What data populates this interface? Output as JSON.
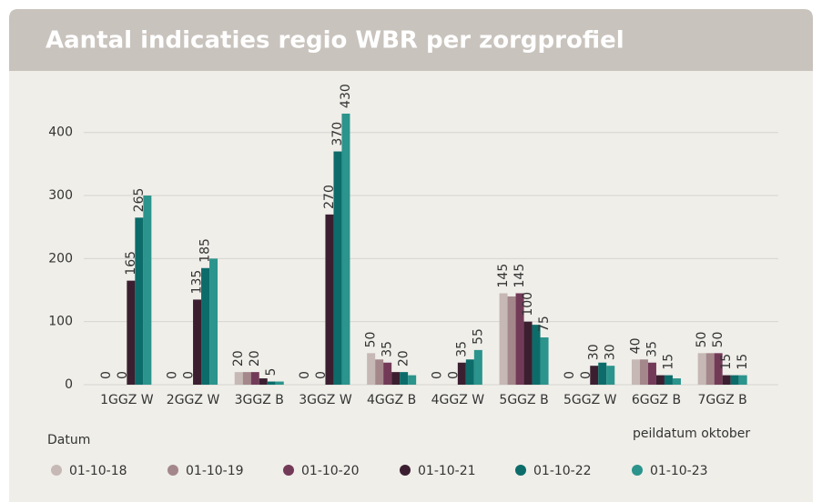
{
  "chart_data": {
    "type": "bar",
    "title": "Aantal indicaties regio WBR per zorgprofiel",
    "annotation": "peildatum oktober",
    "legend_title": "Datum",
    "categories": [
      "1GGZ W",
      "2GGZ W",
      "3GGZ B",
      "3GGZ W",
      "4GGZ B",
      "4GGZ W",
      "5GGZ B",
      "5GGZ W",
      "6GGZ B",
      "7GGZ B"
    ],
    "series": [
      {
        "name": "01-10-18",
        "color": "#c6b8b5",
        "values": [
          0,
          0,
          20,
          0,
          50,
          0,
          145,
          0,
          40,
          50
        ],
        "value_labels": [
          "0",
          "0",
          "20",
          "0",
          "50",
          "0",
          "145",
          "0",
          "40",
          "50"
        ]
      },
      {
        "name": "01-10-19",
        "color": "#a4878a",
        "values": [
          0,
          0,
          20,
          0,
          40,
          0,
          140,
          0,
          40,
          50
        ],
        "value_labels": [
          null,
          null,
          null,
          null,
          null,
          null,
          null,
          null,
          null,
          null
        ]
      },
      {
        "name": "01-10-20",
        "color": "#733a58",
        "values": [
          0,
          0,
          20,
          0,
          35,
          0,
          145,
          0,
          35,
          50
        ],
        "value_labels": [
          "0",
          "0",
          "20",
          "0",
          "35",
          "0",
          "145",
          "0",
          "35",
          "50"
        ]
      },
      {
        "name": "01-10-21",
        "color": "#3b1f30",
        "values": [
          165,
          135,
          10,
          270,
          20,
          35,
          100,
          30,
          15,
          15
        ],
        "value_labels": [
          "165",
          "135",
          null,
          "270",
          null,
          "35",
          "100",
          "30",
          null,
          "15"
        ]
      },
      {
        "name": "01-10-22",
        "color": "#0c6c6a",
        "values": [
          265,
          185,
          5,
          370,
          20,
          40,
          95,
          35,
          15,
          15
        ],
        "value_labels": [
          "265",
          "185",
          "5",
          "370",
          "20",
          null,
          null,
          null,
          "15",
          null
        ]
      },
      {
        "name": "01-10-23",
        "color": "#2b948c",
        "values": [
          300,
          200,
          5,
          430,
          15,
          55,
          75,
          30,
          10,
          15
        ],
        "value_labels": [
          null,
          null,
          null,
          "430",
          null,
          "55",
          "75",
          "30",
          null,
          "15"
        ]
      }
    ],
    "ylim": [
      0,
      440
    ],
    "yticks": [
      0,
      100,
      200,
      300,
      400
    ],
    "grid": true
  }
}
